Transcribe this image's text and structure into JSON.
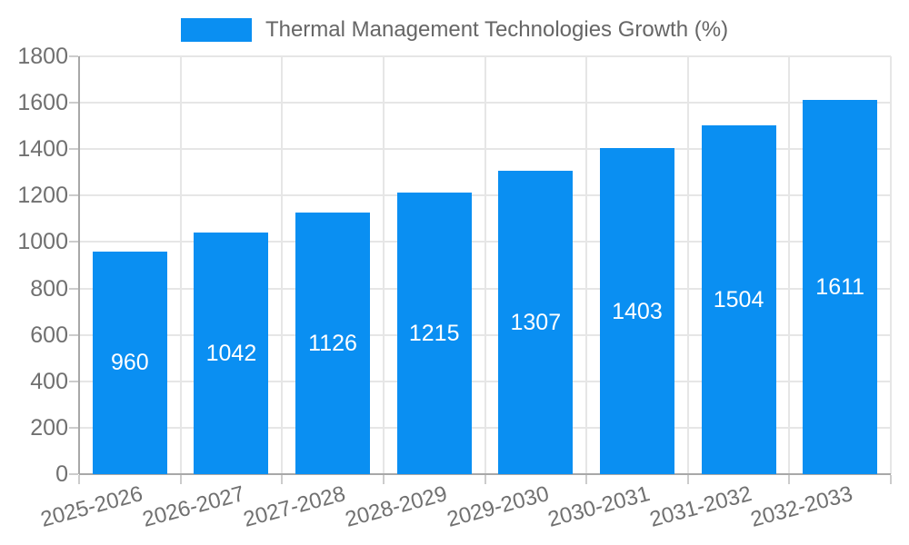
{
  "legend": {
    "label": "Thermal Management Technologies Growth (%)"
  },
  "chart_data": {
    "type": "bar",
    "title": "Thermal Management Technologies Growth (%)",
    "categories": [
      "2025-2026",
      "2026-2027",
      "2027-2028",
      "2028-2029",
      "2029-2030",
      "2030-2031",
      "2031-2032",
      "2032-2033"
    ],
    "values": [
      960,
      1042,
      1126,
      1215,
      1307,
      1403,
      1504,
      1611
    ],
    "xlabel": "",
    "ylabel": "",
    "ylim": [
      0,
      1800
    ],
    "ytick_step": 200,
    "yticks": [
      0,
      200,
      400,
      600,
      800,
      1000,
      1200,
      1400,
      1600,
      1800
    ],
    "grid": true,
    "legend_position": "top",
    "bar_color": "#0a8ff2",
    "value_label_color": "#ffffff",
    "gridline_color": "#e6e6e6",
    "axis_color": "#a8a8a8",
    "tick_color": "#cccccc",
    "tick_label_color": "#707070"
  }
}
